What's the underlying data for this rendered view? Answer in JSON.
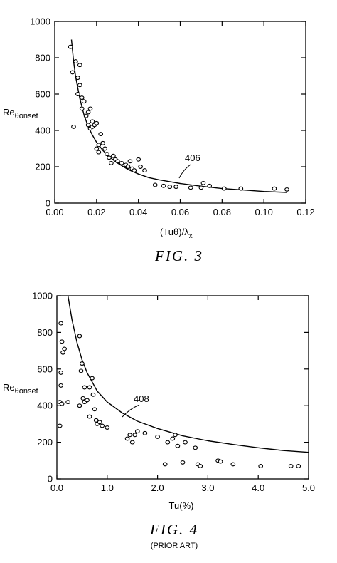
{
  "chart_data": [
    {
      "type": "scatter",
      "caption": "FIG. 3",
      "xlabel": "(Tuθ)/λ",
      "xlabel_sub": "x",
      "ylabel": "Re",
      "ylabel_sub": "θonset",
      "xlim": [
        0.0,
        0.12
      ],
      "ylim": [
        0,
        1000
      ],
      "x_ticks": [
        "0.00",
        "0.02",
        "0.04",
        "0.06",
        "0.08",
        "0.10",
        "0.12"
      ],
      "y_ticks": [
        "0",
        "200",
        "400",
        "600",
        "800",
        "1000"
      ],
      "curve_label": "406",
      "curve": {
        "x": [
          0.008,
          0.009,
          0.01,
          0.012,
          0.014,
          0.016,
          0.018,
          0.02,
          0.023,
          0.026,
          0.03,
          0.035,
          0.04,
          0.045,
          0.05,
          0.055,
          0.06,
          0.07,
          0.08,
          0.09,
          0.1,
          0.111
        ],
        "y": [
          900,
          780,
          695,
          575,
          485,
          420,
          375,
          335,
          290,
          255,
          220,
          185,
          160,
          140,
          128,
          118,
          108,
          93,
          80,
          72,
          64,
          59
        ]
      },
      "points": [
        [
          0.0075,
          860
        ],
        [
          0.0085,
          720
        ],
        [
          0.009,
          420
        ],
        [
          0.01,
          780
        ],
        [
          0.011,
          690
        ],
        [
          0.011,
          600
        ],
        [
          0.012,
          760
        ],
        [
          0.012,
          650
        ],
        [
          0.013,
          580
        ],
        [
          0.013,
          520
        ],
        [
          0.014,
          560
        ],
        [
          0.015,
          480
        ],
        [
          0.016,
          500
        ],
        [
          0.016,
          430
        ],
        [
          0.017,
          520
        ],
        [
          0.017,
          410
        ],
        [
          0.018,
          450
        ],
        [
          0.018,
          420
        ],
        [
          0.019,
          430
        ],
        [
          0.02,
          440
        ],
        [
          0.02,
          300
        ],
        [
          0.021,
          280
        ],
        [
          0.021,
          320
        ],
        [
          0.022,
          380
        ],
        [
          0.023,
          330
        ],
        [
          0.024,
          300
        ],
        [
          0.025,
          270
        ],
        [
          0.026,
          250
        ],
        [
          0.027,
          220
        ],
        [
          0.028,
          260
        ],
        [
          0.029,
          240
        ],
        [
          0.03,
          230
        ],
        [
          0.032,
          220
        ],
        [
          0.034,
          210
        ],
        [
          0.035,
          200
        ],
        [
          0.036,
          230
        ],
        [
          0.037,
          190
        ],
        [
          0.038,
          180
        ],
        [
          0.04,
          240
        ],
        [
          0.041,
          200
        ],
        [
          0.043,
          180
        ],
        [
          0.048,
          100
        ],
        [
          0.052,
          95
        ],
        [
          0.055,
          90
        ],
        [
          0.058,
          90
        ],
        [
          0.065,
          85
        ],
        [
          0.07,
          85
        ],
        [
          0.071,
          110
        ],
        [
          0.074,
          95
        ],
        [
          0.081,
          80
        ],
        [
          0.089,
          80
        ],
        [
          0.105,
          80
        ],
        [
          0.111,
          75
        ]
      ]
    },
    {
      "type": "scatter",
      "caption": "FIG. 4",
      "caption_note": "(PRIOR ART)",
      "xlabel": "Tu(%)",
      "ylabel": "Re",
      "ylabel_sub": "θonset",
      "xlim": [
        0.0,
        5.0
      ],
      "ylim": [
        0,
        1000
      ],
      "x_ticks": [
        "0.0",
        "1.0",
        "2.0",
        "3.0",
        "4.0",
        "5.0"
      ],
      "y_ticks": [
        "0",
        "200",
        "400",
        "600",
        "800",
        "1000"
      ],
      "curve_label": "408",
      "curve": {
        "x": [
          0.22,
          0.3,
          0.4,
          0.5,
          0.6,
          0.8,
          1.0,
          1.3,
          1.6,
          2.0,
          2.5,
          3.0,
          3.5,
          4.0,
          4.5,
          5.0
        ],
        "y": [
          1000,
          870,
          745,
          650,
          580,
          480,
          420,
          360,
          315,
          275,
          235,
          208,
          188,
          170,
          155,
          145
        ]
      },
      "points": [
        [
          0.08,
          850
        ],
        [
          0.1,
          750
        ],
        [
          0.12,
          690
        ],
        [
          0.15,
          710
        ],
        [
          0.08,
          580
        ],
        [
          0.08,
          510
        ],
        [
          0.06,
          420
        ],
        [
          0.1,
          410
        ],
        [
          0.22,
          420
        ],
        [
          0.06,
          290
        ],
        [
          0.45,
          780
        ],
        [
          0.5,
          630
        ],
        [
          0.48,
          590
        ],
        [
          0.55,
          500
        ],
        [
          0.52,
          440
        ],
        [
          0.55,
          420
        ],
        [
          0.6,
          430
        ],
        [
          0.65,
          340
        ],
        [
          0.45,
          400
        ],
        [
          0.65,
          500
        ],
        [
          0.7,
          550
        ],
        [
          0.72,
          460
        ],
        [
          0.75,
          380
        ],
        [
          0.78,
          320
        ],
        [
          0.8,
          300
        ],
        [
          0.85,
          310
        ],
        [
          0.9,
          290
        ],
        [
          1.0,
          280
        ],
        [
          1.4,
          220
        ],
        [
          1.45,
          240
        ],
        [
          1.5,
          200
        ],
        [
          1.55,
          240
        ],
        [
          1.6,
          260
        ],
        [
          1.75,
          250
        ],
        [
          2.0,
          230
        ],
        [
          2.15,
          80
        ],
        [
          2.2,
          200
        ],
        [
          2.3,
          220
        ],
        [
          2.35,
          240
        ],
        [
          2.4,
          180
        ],
        [
          2.5,
          90
        ],
        [
          2.55,
          200
        ],
        [
          2.75,
          170
        ],
        [
          2.8,
          80
        ],
        [
          2.85,
          70
        ],
        [
          3.2,
          100
        ],
        [
          3.25,
          95
        ],
        [
          3.5,
          80
        ],
        [
          4.05,
          70
        ],
        [
          4.65,
          70
        ],
        [
          4.8,
          70
        ]
      ]
    }
  ]
}
